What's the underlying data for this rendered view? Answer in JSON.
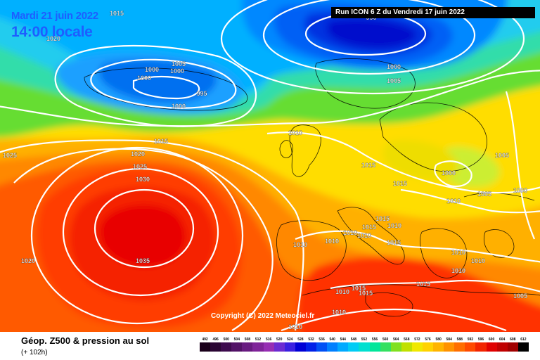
{
  "header": {
    "valid_date": "Mardi 21 juin 2022",
    "local_time": "14:00 locale",
    "run_info": "Run ICON 6 Z du Vendredi 17 juin 2022"
  },
  "copyright": "Copyright (C) 2022 Meteociel.fr",
  "legend": {
    "title": "Géop. Z500 & pression au sol",
    "lead_time": "(+ 102h)",
    "scale": [
      {
        "value": "492",
        "color": "#1a001a"
      },
      {
        "value": "496",
        "color": "#2a0533"
      },
      {
        "value": "500",
        "color": "#3d0a4d"
      },
      {
        "value": "504",
        "color": "#521266"
      },
      {
        "value": "508",
        "color": "#681a80"
      },
      {
        "value": "512",
        "color": "#7f2399"
      },
      {
        "value": "516",
        "color": "#962db3"
      },
      {
        "value": "520",
        "color": "#6b2bd1"
      },
      {
        "value": "524",
        "color": "#3a20e0"
      },
      {
        "value": "528",
        "color": "#0000d6"
      },
      {
        "value": "532",
        "color": "#0020e8"
      },
      {
        "value": "536",
        "color": "#0050f5"
      },
      {
        "value": "540",
        "color": "#0080ff"
      },
      {
        "value": "544",
        "color": "#00aaff"
      },
      {
        "value": "548",
        "color": "#00ccf5"
      },
      {
        "value": "552",
        "color": "#00e0d0"
      },
      {
        "value": "556",
        "color": "#00e69a"
      },
      {
        "value": "560",
        "color": "#33e060"
      },
      {
        "value": "564",
        "color": "#80e020"
      },
      {
        "value": "568",
        "color": "#c0e000"
      },
      {
        "value": "572",
        "color": "#f0e800"
      },
      {
        "value": "576",
        "color": "#ffd200"
      },
      {
        "value": "580",
        "color": "#ffb400"
      },
      {
        "value": "584",
        "color": "#ff9200"
      },
      {
        "value": "588",
        "color": "#ff6e00"
      },
      {
        "value": "592",
        "color": "#ff4a00"
      },
      {
        "value": "596",
        "color": "#f22400"
      },
      {
        "value": "600",
        "color": "#e00000"
      },
      {
        "value": "604",
        "color": "#c00000"
      },
      {
        "value": "608",
        "color": "#a00000"
      },
      {
        "value": "612",
        "color": "#000000"
      }
    ]
  },
  "isobar_labels": [
    {
      "text": "1015",
      "at": [
        166,
        22
      ]
    },
    {
      "text": "1020",
      "at": [
        76,
        58
      ]
    },
    {
      "text": "1005",
      "at": [
        254,
        94
      ]
    },
    {
      "text": "1000",
      "at": [
        216,
        102
      ]
    },
    {
      "text": "1000",
      "at": [
        252,
        104
      ]
    },
    {
      "text": "1000",
      "at": [
        205,
        114
      ]
    },
    {
      "text": "995",
      "at": [
        287,
        136
      ]
    },
    {
      "text": "1000",
      "at": [
        254,
        154
      ]
    },
    {
      "text": "1000",
      "at": [
        560,
        98
      ]
    },
    {
      "text": "1005",
      "at": [
        560,
        118
      ]
    },
    {
      "text": "1010",
      "at": [
        420,
        192
      ]
    },
    {
      "text": "1015",
      "at": [
        229,
        204
      ]
    },
    {
      "text": "1025",
      "at": [
        14,
        224
      ]
    },
    {
      "text": "1020",
      "at": [
        196,
        222
      ]
    },
    {
      "text": "1025",
      "at": [
        199,
        240
      ]
    },
    {
      "text": "1030",
      "at": [
        203,
        258
      ]
    },
    {
      "text": "1035",
      "at": [
        203,
        374
      ]
    },
    {
      "text": "1020",
      "at": [
        40,
        374
      ]
    },
    {
      "text": "1015",
      "at": [
        524,
        238
      ]
    },
    {
      "text": "1015",
      "at": [
        569,
        264
      ]
    },
    {
      "text": "1000",
      "at": [
        638,
        249
      ]
    },
    {
      "text": "1005",
      "at": [
        714,
        224
      ]
    },
    {
      "text": "1005",
      "at": [
        689,
        279
      ]
    },
    {
      "text": "1000",
      "at": [
        740,
        274
      ]
    },
    {
      "text": "1010",
      "at": [
        645,
        289
      ]
    },
    {
      "text": "1015",
      "at": [
        544,
        314
      ]
    },
    {
      "text": "1015",
      "at": [
        525,
        326
      ]
    },
    {
      "text": "1010",
      "at": [
        561,
        324
      ]
    },
    {
      "text": "1010",
      "at": [
        498,
        334
      ]
    },
    {
      "text": "1010",
      "at": [
        518,
        338
      ]
    },
    {
      "text": "1010",
      "at": [
        427,
        351
      ]
    },
    {
      "text": "1010",
      "at": [
        472,
        346
      ]
    },
    {
      "text": "1015",
      "at": [
        560,
        348
      ]
    },
    {
      "text": "1010",
      "at": [
        652,
        362
      ]
    },
    {
      "text": "1010",
      "at": [
        680,
        374
      ]
    },
    {
      "text": "1010",
      "at": [
        652,
        388
      ]
    },
    {
      "text": "1015",
      "at": [
        602,
        407
      ]
    },
    {
      "text": "1015",
      "at": [
        510,
        413
      ]
    },
    {
      "text": "1010",
      "at": [
        487,
        418
      ]
    },
    {
      "text": "1015",
      "at": [
        520,
        420
      ]
    },
    {
      "text": "1010",
      "at": [
        482,
        447
      ]
    },
    {
      "text": "1005",
      "at": [
        740,
        424
      ]
    },
    {
      "text": "1010",
      "at": [
        420,
        468
      ]
    },
    {
      "text": "990",
      "at": [
        528,
        28
      ]
    }
  ]
}
